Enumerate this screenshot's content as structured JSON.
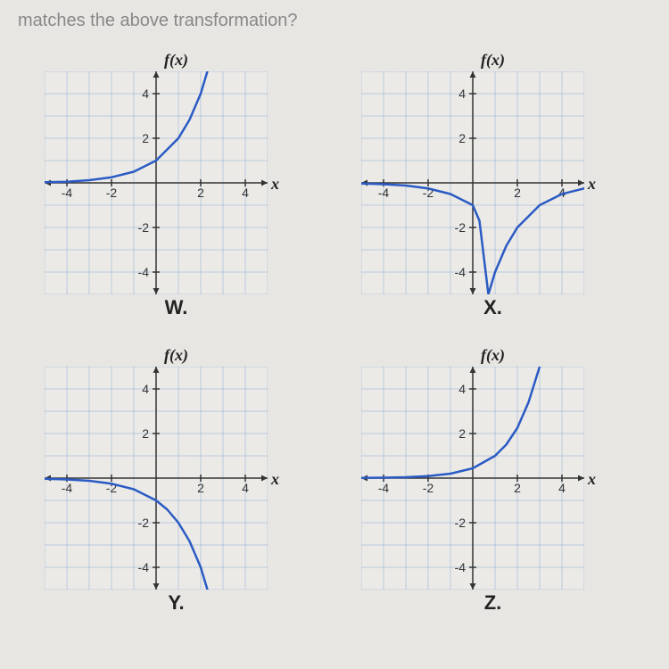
{
  "question_text": "matches the above transformation?",
  "axis_label": "f(x)",
  "x_label": "x",
  "chart_size": 250,
  "axis_range": {
    "min": -5,
    "max": 5
  },
  "ticks": {
    "x": [
      -4,
      -2,
      2,
      4
    ],
    "y": [
      -4,
      -2,
      2,
      4
    ]
  },
  "style": {
    "grid_color": "#8aa9d6",
    "grid_width": 1,
    "axis_color": "#333",
    "axis_width": 1.5,
    "curve_color": "#2a5bc4",
    "curve_width": 2.5,
    "tick_font_size": 14,
    "tick_font_family": "Arial, sans-serif",
    "background": "#eceae7",
    "arrow_size": 7
  },
  "charts": [
    {
      "id": "W",
      "label": "W.",
      "curve": [
        [
          -5,
          0.03
        ],
        [
          -4,
          0.05
        ],
        [
          -3,
          0.12
        ],
        [
          -2,
          0.25
        ],
        [
          -1,
          0.5
        ],
        [
          0,
          1
        ],
        [
          1,
          2
        ],
        [
          1.5,
          2.83
        ],
        [
          2,
          4
        ],
        [
          2.3,
          5
        ]
      ]
    },
    {
      "id": "X",
      "label": "X.",
      "curve": [
        [
          0.7,
          -5
        ],
        [
          1,
          -4
        ],
        [
          1.5,
          -2.83
        ],
        [
          2,
          -2
        ],
        [
          3,
          -1
        ],
        [
          4,
          -0.5
        ],
        [
          5,
          -0.25
        ]
      ],
      "curve_left": [
        [
          -5,
          -0.03
        ],
        [
          -4,
          -0.06
        ],
        [
          -3,
          -0.12
        ],
        [
          -2,
          -0.25
        ],
        [
          -1,
          -0.5
        ],
        [
          0,
          -1
        ],
        [
          0.3,
          -1.7
        ],
        [
          0.7,
          -5
        ]
      ]
    },
    {
      "id": "Y",
      "label": "Y.",
      "curve": [
        [
          -5,
          -0.03
        ],
        [
          -4,
          -0.06
        ],
        [
          -3,
          -0.12
        ],
        [
          -2,
          -0.25
        ],
        [
          -1,
          -0.5
        ],
        [
          0,
          -1
        ],
        [
          0.5,
          -1.41
        ],
        [
          1,
          -2
        ],
        [
          1.5,
          -2.83
        ],
        [
          2,
          -4
        ],
        [
          2.3,
          -5
        ]
      ]
    },
    {
      "id": "Z",
      "label": "Z.",
      "curve": [
        [
          -5,
          0.01
        ],
        [
          -4,
          0.02
        ],
        [
          -3,
          0.04
        ],
        [
          -2,
          0.09
        ],
        [
          -1,
          0.2
        ],
        [
          0,
          0.44
        ],
        [
          1,
          1
        ],
        [
          1.5,
          1.5
        ],
        [
          2,
          2.25
        ],
        [
          2.5,
          3.4
        ],
        [
          3,
          5
        ]
      ]
    }
  ]
}
